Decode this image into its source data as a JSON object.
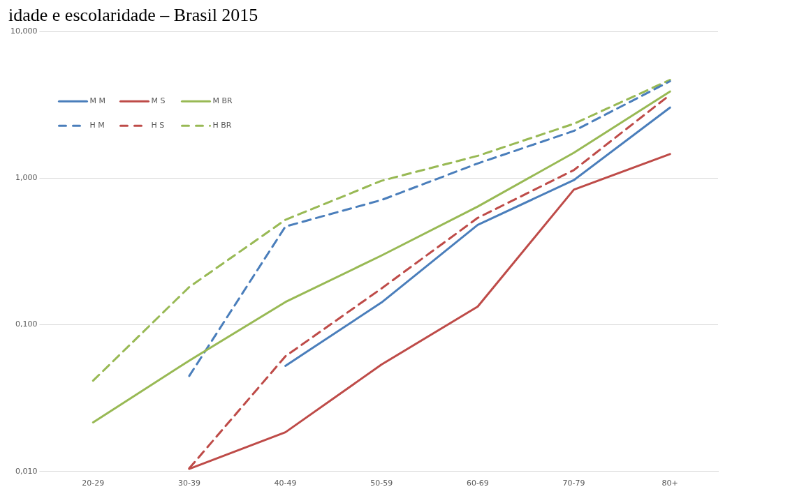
{
  "chart_data": {
    "type": "line",
    "title": "idade e escolaridade – Brasil 2015",
    "categories": [
      "20-29",
      "30-39",
      "40-49",
      "50-59",
      "60-69",
      "70-79",
      "80+"
    ],
    "log": "y",
    "ylim": [
      0.01,
      10
    ],
    "yticks": [
      {
        "value": 0.01,
        "label": "0,010"
      },
      {
        "value": 0.1,
        "label": "0,100"
      },
      {
        "value": 1,
        "label": "1,000"
      },
      {
        "value": 10,
        "label": "10,000"
      }
    ],
    "grid": "y",
    "legend": "top left",
    "marker": "none",
    "series": [
      {
        "name": "M M",
        "color": "#4a7ebb",
        "line_style": "solid",
        "values": [
          null,
          null,
          0.0525,
          0.142,
          0.48,
          0.97,
          3.03
        ]
      },
      {
        "name": "M S",
        "color": "#be4b48",
        "line_style": "solid",
        "values": [
          null,
          0.0104,
          0.0185,
          0.0536,
          0.133,
          0.835,
          1.46
        ]
      },
      {
        "name": "M BR",
        "color": "#98b954",
        "line_style": "solid",
        "values": [
          0.0216,
          0.057,
          0.143,
          0.297,
          0.64,
          1.49,
          3.9
        ]
      },
      {
        "name": "H M",
        "color": "#4a7ebb",
        "line_style": "dashed",
        "values": [
          null,
          0.0448,
          0.468,
          0.71,
          1.26,
          2.1,
          4.58
        ]
      },
      {
        "name": "H S",
        "color": "#be4b48",
        "line_style": "dashed",
        "values": [
          null,
          0.0105,
          0.061,
          0.177,
          0.536,
          1.135,
          3.7
        ]
      },
      {
        "name": "H BR",
        "color": "#98b954",
        "line_style": "dashed",
        "values": [
          0.0416,
          0.181,
          0.52,
          0.96,
          1.42,
          2.35,
          4.68
        ]
      }
    ]
  }
}
